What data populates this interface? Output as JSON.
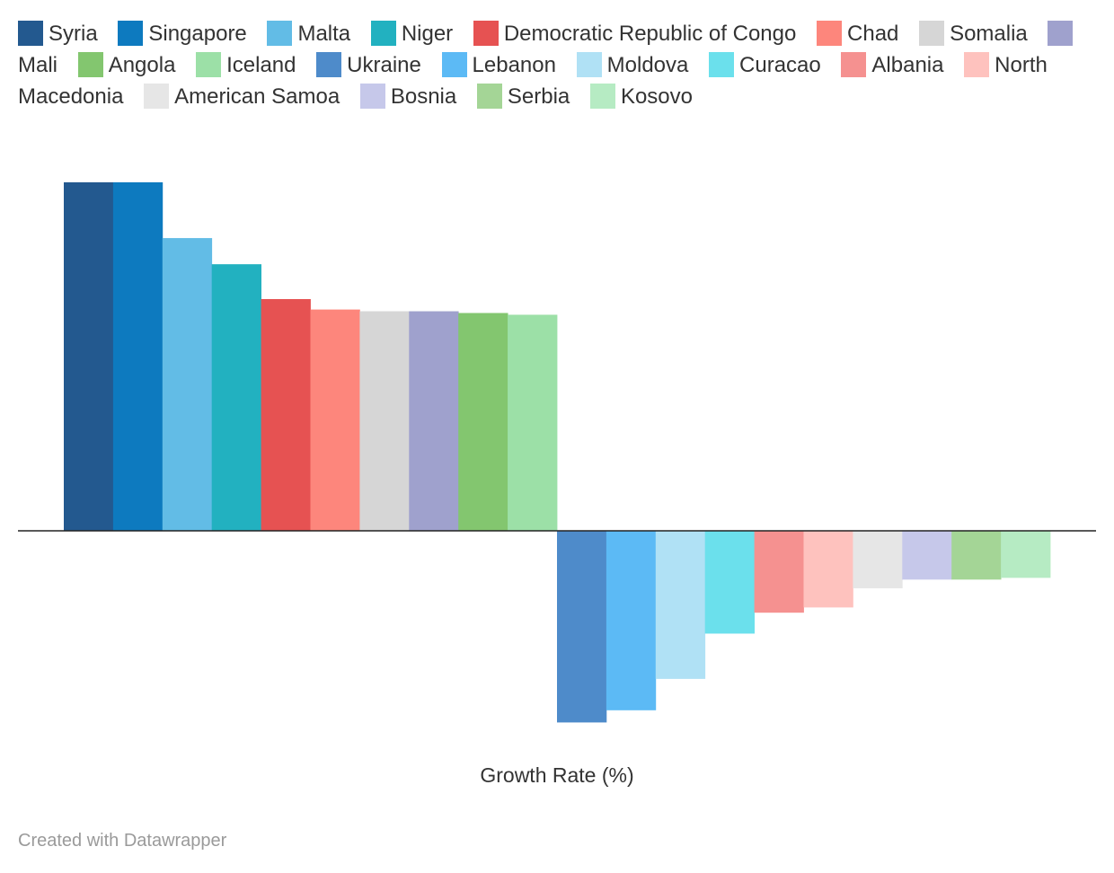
{
  "chart_data": {
    "type": "bar",
    "xlabel": "Growth Rate (%)",
    "ylabel": "",
    "credit": "Created with Datawrapper",
    "legend_position": "top",
    "grid": false,
    "series": [
      {
        "name": "Syria",
        "value": 100,
        "color": "#23598f"
      },
      {
        "name": "Singapore",
        "value": 100,
        "color": "#0d7abf"
      },
      {
        "name": "Malta",
        "value": 84,
        "color": "#62bce6"
      },
      {
        "name": "Niger",
        "value": 76.5,
        "color": "#22b1c0"
      },
      {
        "name": "Democratic Republic of Congo",
        "value": 66.5,
        "color": "#e65252"
      },
      {
        "name": "Chad",
        "value": 63.5,
        "color": "#fd867c"
      },
      {
        "name": "Somalia",
        "value": 63,
        "color": "#d6d6d6"
      },
      {
        "name": "Mali",
        "value": 63,
        "color": "#9fa1cd"
      },
      {
        "name": "Angola",
        "value": 62.5,
        "color": "#83c66f"
      },
      {
        "name": "Iceland",
        "value": 62,
        "color": "#9ce0a7"
      },
      {
        "name": "Ukraine",
        "value": -55,
        "color": "#4e8bca"
      },
      {
        "name": "Lebanon",
        "value": -51.5,
        "color": "#5cbaf5"
      },
      {
        "name": "Moldova",
        "value": -42.5,
        "color": "#b0e1f5"
      },
      {
        "name": "Curacao",
        "value": -29.5,
        "color": "#6be0ec"
      },
      {
        "name": "Albania",
        "value": -23.5,
        "color": "#f59190"
      },
      {
        "name": "North Macedonia",
        "value": -22,
        "color": "#fec2be"
      },
      {
        "name": "American Samoa",
        "value": -16.5,
        "color": "#e6e6e6"
      },
      {
        "name": "Bosnia",
        "value": -14,
        "color": "#c6c8ea"
      },
      {
        "name": "Serbia",
        "value": -14,
        "color": "#a4d596"
      },
      {
        "name": "Kosovo",
        "value": -13.5,
        "color": "#b6ebc3"
      }
    ]
  }
}
